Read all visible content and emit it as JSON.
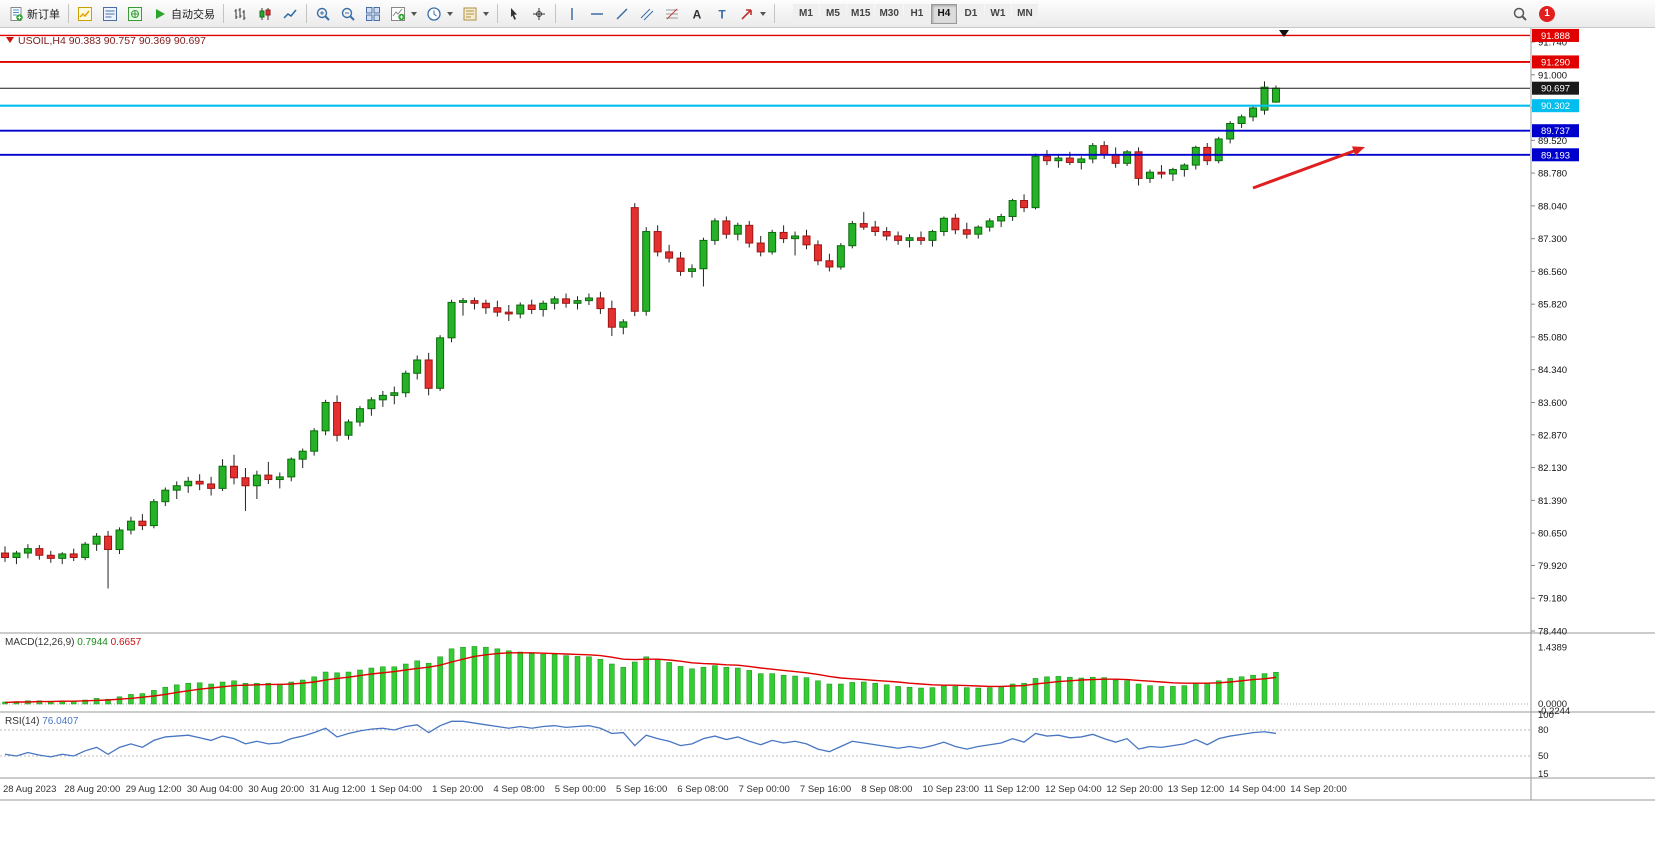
{
  "toolbar": {
    "new_order_label": "新订单",
    "auto_trading_label": "自动交易",
    "timeframes": [
      "M1",
      "M5",
      "M15",
      "M30",
      "H1",
      "H4",
      "D1",
      "W1",
      "MN"
    ],
    "active_timeframe": "H4",
    "notification_count": "1"
  },
  "chart": {
    "symbol_header": "USOIL,H4 90.383 90.757 90.369 90.697",
    "price_axis_ticks": [
      "91.740",
      "91.000",
      "90.260",
      "89.520",
      "88.780",
      "88.040",
      "87.300",
      "86.560",
      "85.820",
      "85.080",
      "84.340",
      "83.600",
      "82.870",
      "82.130",
      "81.390",
      "80.650",
      "79.920",
      "79.180",
      "78.440"
    ],
    "price_badges": [
      {
        "value": "91.888",
        "bg": "#E00000",
        "fg": "#FFFFFF"
      },
      {
        "value": "91.290",
        "bg": "#E00000",
        "fg": "#FFFFFF"
      },
      {
        "value": "90.697",
        "bg": "#1A1A1A",
        "fg": "#FFFFFF"
      },
      {
        "value": "90.302",
        "bg": "#00BFEF",
        "fg": "#FFFFFF"
      },
      {
        "value": "89.737",
        "bg": "#0000CD",
        "fg": "#FFFFFF"
      },
      {
        "value": "89.193",
        "bg": "#0000CD",
        "fg": "#FFFFFF"
      }
    ],
    "hlines": [
      {
        "price": 91.888,
        "color": "#E00000",
        "width": 1.3
      },
      {
        "price": 91.29,
        "color": "#E00000",
        "width": 1.8
      },
      {
        "price": 90.697,
        "color": "#1A1A1A",
        "width": 1
      },
      {
        "price": 90.302,
        "color": "#00BFEF",
        "width": 2.2
      },
      {
        "price": 89.737,
        "color": "#0000CD",
        "width": 1.8
      },
      {
        "price": 89.193,
        "color": "#0000CD",
        "width": 1.8
      }
    ],
    "time_labels": [
      "28 Aug 2023",
      "28 Aug 20:00",
      "29 Aug 12:00",
      "30 Aug 04:00",
      "30 Aug 20:00",
      "31 Aug 12:00",
      "1 Sep 04:00",
      "1 Sep 20:00",
      "4 Sep 08:00",
      "5 Sep 00:00",
      "5 Sep 16:00",
      "6 Sep 08:00",
      "7 Sep 00:00",
      "7 Sep 16:00",
      "8 Sep 08:00",
      "10 Sep 23:00",
      "11 Sep 12:00",
      "12 Sep 04:00",
      "12 Sep 20:00",
      "13 Sep 12:00",
      "14 Sep 04:00",
      "14 Sep 20:00"
    ],
    "colors": {
      "up": "#26B226",
      "up_border": "#0B6B0B",
      "down": "#E53030",
      "down_border": "#9E1414",
      "wick": "#222222",
      "macd_hist": "#33CC33",
      "macd_hist_border": "#189018",
      "macd_signal": "#E00000",
      "rsi_line": "#4876C2",
      "annotation_arrow": "#E02020",
      "header_text": "#7B1D1D"
    }
  },
  "chart_data": {
    "type": "candlestick",
    "symbol": "USOIL",
    "timeframe": "H4",
    "price_range": [
      78.44,
      91.74
    ],
    "ohlc_current": {
      "open": 90.383,
      "high": 90.757,
      "low": 90.369,
      "close": 90.697
    },
    "candles": [
      [
        80.2,
        80.35,
        80.0,
        80.1
      ],
      [
        80.1,
        80.25,
        79.95,
        80.2
      ],
      [
        80.2,
        80.4,
        80.08,
        80.3
      ],
      [
        80.3,
        80.38,
        80.05,
        80.15
      ],
      [
        80.15,
        80.25,
        79.98,
        80.08
      ],
      [
        80.08,
        80.22,
        79.95,
        80.18
      ],
      [
        80.18,
        80.3,
        80.02,
        80.1
      ],
      [
        80.1,
        80.45,
        80.04,
        80.4
      ],
      [
        80.4,
        80.65,
        80.25,
        80.58
      ],
      [
        80.58,
        80.7,
        79.4,
        80.28
      ],
      [
        80.28,
        80.78,
        80.18,
        80.72
      ],
      [
        80.72,
        81.02,
        80.62,
        80.92
      ],
      [
        80.92,
        81.08,
        80.72,
        80.82
      ],
      [
        80.82,
        81.42,
        80.76,
        81.36
      ],
      [
        81.36,
        81.68,
        81.26,
        81.62
      ],
      [
        81.62,
        81.82,
        81.42,
        81.72
      ],
      [
        81.72,
        81.92,
        81.56,
        81.82
      ],
      [
        81.82,
        81.98,
        81.62,
        81.76
      ],
      [
        81.76,
        81.92,
        81.5,
        81.66
      ],
      [
        81.66,
        82.32,
        81.6,
        82.16
      ],
      [
        82.16,
        82.42,
        81.75,
        81.9
      ],
      [
        81.9,
        82.12,
        81.15,
        81.72
      ],
      [
        81.72,
        82.06,
        81.42,
        81.96
      ],
      [
        81.96,
        82.26,
        81.76,
        81.86
      ],
      [
        81.86,
        82.02,
        81.66,
        81.92
      ],
      [
        81.92,
        82.36,
        81.82,
        82.32
      ],
      [
        82.32,
        82.56,
        82.12,
        82.5
      ],
      [
        82.5,
        83.02,
        82.4,
        82.96
      ],
      [
        82.96,
        83.66,
        82.86,
        83.6
      ],
      [
        83.6,
        83.76,
        82.72,
        82.86
      ],
      [
        82.86,
        83.22,
        82.76,
        83.16
      ],
      [
        83.16,
        83.52,
        83.06,
        83.46
      ],
      [
        83.46,
        83.72,
        83.3,
        83.66
      ],
      [
        83.66,
        83.86,
        83.5,
        83.76
      ],
      [
        83.76,
        83.96,
        83.56,
        83.82
      ],
      [
        83.82,
        84.32,
        83.72,
        84.26
      ],
      [
        84.26,
        84.66,
        84.12,
        84.56
      ],
      [
        84.56,
        84.72,
        83.76,
        83.92
      ],
      [
        83.92,
        85.12,
        83.86,
        85.06
      ],
      [
        85.06,
        85.92,
        84.96,
        85.86
      ],
      [
        85.86,
        85.96,
        85.56,
        85.9
      ],
      [
        85.9,
        85.97,
        85.7,
        85.84
      ],
      [
        85.84,
        85.92,
        85.6,
        85.74
      ],
      [
        85.74,
        85.9,
        85.54,
        85.64
      ],
      [
        85.64,
        85.8,
        85.44,
        85.6
      ],
      [
        85.6,
        85.86,
        85.5,
        85.8
      ],
      [
        85.8,
        85.92,
        85.6,
        85.7
      ],
      [
        85.7,
        85.9,
        85.54,
        85.84
      ],
      [
        85.84,
        86.0,
        85.7,
        85.94
      ],
      [
        85.94,
        86.06,
        85.74,
        85.84
      ],
      [
        85.84,
        86.0,
        85.7,
        85.9
      ],
      [
        85.9,
        86.06,
        85.8,
        85.96
      ],
      [
        85.96,
        86.1,
        85.6,
        85.72
      ],
      [
        85.72,
        85.9,
        85.1,
        85.3
      ],
      [
        85.3,
        85.48,
        85.14,
        85.42
      ],
      [
        88.0,
        88.1,
        85.55,
        85.66
      ],
      [
        85.66,
        87.56,
        85.56,
        87.46
      ],
      [
        87.46,
        87.6,
        86.9,
        87.0
      ],
      [
        87.0,
        87.16,
        86.76,
        86.86
      ],
      [
        86.86,
        87.0,
        86.46,
        86.56
      ],
      [
        86.56,
        86.72,
        86.42,
        86.62
      ],
      [
        86.62,
        87.32,
        86.22,
        87.26
      ],
      [
        87.26,
        87.76,
        87.16,
        87.7
      ],
      [
        87.7,
        87.8,
        87.3,
        87.4
      ],
      [
        87.4,
        87.66,
        87.26,
        87.6
      ],
      [
        87.6,
        87.7,
        87.1,
        87.2
      ],
      [
        87.2,
        87.36,
        86.9,
        87.0
      ],
      [
        87.0,
        87.5,
        86.94,
        87.44
      ],
      [
        87.44,
        87.6,
        87.2,
        87.3
      ],
      [
        87.3,
        87.46,
        86.92,
        87.36
      ],
      [
        87.36,
        87.5,
        87.06,
        87.16
      ],
      [
        87.16,
        87.26,
        86.7,
        86.8
      ],
      [
        86.8,
        86.96,
        86.56,
        86.66
      ],
      [
        86.66,
        87.2,
        86.6,
        87.14
      ],
      [
        87.14,
        87.7,
        87.08,
        87.64
      ],
      [
        87.64,
        87.9,
        87.5,
        87.56
      ],
      [
        87.56,
        87.7,
        87.36,
        87.46
      ],
      [
        87.46,
        87.56,
        87.26,
        87.36
      ],
      [
        87.36,
        87.46,
        87.16,
        87.26
      ],
      [
        87.26,
        87.4,
        87.1,
        87.32
      ],
      [
        87.32,
        87.46,
        87.16,
        87.26
      ],
      [
        87.26,
        87.5,
        87.12,
        87.46
      ],
      [
        87.46,
        87.8,
        87.36,
        87.76
      ],
      [
        87.76,
        87.86,
        87.4,
        87.5
      ],
      [
        87.5,
        87.66,
        87.3,
        87.4
      ],
      [
        87.4,
        87.6,
        87.3,
        87.56
      ],
      [
        87.56,
        87.76,
        87.46,
        87.7
      ],
      [
        87.7,
        87.86,
        87.56,
        87.8
      ],
      [
        87.8,
        88.2,
        87.7,
        88.16
      ],
      [
        88.16,
        88.3,
        87.9,
        88.0
      ],
      [
        88.0,
        89.22,
        87.96,
        89.16
      ],
      [
        89.16,
        89.3,
        88.96,
        89.06
      ],
      [
        89.06,
        89.2,
        88.9,
        89.12
      ],
      [
        89.12,
        89.26,
        88.96,
        89.02
      ],
      [
        89.02,
        89.16,
        88.86,
        89.1
      ],
      [
        89.1,
        89.46,
        89.0,
        89.4
      ],
      [
        89.4,
        89.5,
        89.1,
        89.2
      ],
      [
        89.2,
        89.36,
        88.9,
        89.0
      ],
      [
        89.0,
        89.3,
        88.94,
        89.26
      ],
      [
        89.26,
        89.36,
        88.5,
        88.66
      ],
      [
        88.66,
        88.86,
        88.56,
        88.8
      ],
      [
        88.8,
        88.96,
        88.66,
        88.76
      ],
      [
        88.76,
        88.9,
        88.6,
        88.86
      ],
      [
        88.86,
        89.0,
        88.7,
        88.96
      ],
      [
        88.96,
        89.4,
        88.86,
        89.36
      ],
      [
        89.36,
        89.46,
        88.96,
        89.06
      ],
      [
        89.06,
        89.6,
        89.0,
        89.55
      ],
      [
        89.55,
        89.95,
        89.45,
        89.9
      ],
      [
        89.9,
        90.1,
        89.8,
        90.05
      ],
      [
        90.05,
        90.3,
        89.95,
        90.25
      ],
      [
        90.2,
        90.85,
        90.1,
        90.72
      ],
      [
        90.383,
        90.757,
        90.369,
        90.697
      ]
    ],
    "macd": {
      "label": "MACD(12,26,9)",
      "value_main": "0.7944",
      "value_signal": "0.6657",
      "axis_ticks": [
        "1.4389",
        "0.0000",
        "-0.2244"
      ],
      "histogram": [
        0.05,
        0.06,
        0.08,
        0.08,
        0.07,
        0.08,
        0.08,
        0.1,
        0.14,
        0.12,
        0.18,
        0.24,
        0.26,
        0.34,
        0.42,
        0.48,
        0.52,
        0.53,
        0.5,
        0.55,
        0.58,
        0.52,
        0.52,
        0.52,
        0.5,
        0.55,
        0.6,
        0.68,
        0.8,
        0.78,
        0.8,
        0.85,
        0.9,
        0.93,
        0.93,
        1.0,
        1.08,
        1.02,
        1.18,
        1.38,
        1.42,
        1.4389,
        1.42,
        1.38,
        1.33,
        1.3,
        1.26,
        1.24,
        1.24,
        1.21,
        1.19,
        1.18,
        1.12,
        1.0,
        0.92,
        1.05,
        1.18,
        1.12,
        1.04,
        0.94,
        0.88,
        0.92,
        0.96,
        0.92,
        0.9,
        0.84,
        0.76,
        0.76,
        0.72,
        0.7,
        0.66,
        0.58,
        0.5,
        0.5,
        0.54,
        0.55,
        0.52,
        0.48,
        0.44,
        0.42,
        0.4,
        0.41,
        0.45,
        0.44,
        0.41,
        0.4,
        0.41,
        0.43,
        0.5,
        0.52,
        0.64,
        0.68,
        0.69,
        0.67,
        0.65,
        0.67,
        0.66,
        0.6,
        0.58,
        0.5,
        0.46,
        0.44,
        0.44,
        0.46,
        0.52,
        0.52,
        0.58,
        0.64,
        0.68,
        0.72,
        0.76,
        0.7944
      ],
      "signal": [
        0.04,
        0.05,
        0.05,
        0.06,
        0.06,
        0.07,
        0.07,
        0.08,
        0.09,
        0.1,
        0.12,
        0.14,
        0.17,
        0.2,
        0.24,
        0.29,
        0.33,
        0.37,
        0.4,
        0.43,
        0.46,
        0.47,
        0.48,
        0.49,
        0.49,
        0.5,
        0.52,
        0.55,
        0.6,
        0.64,
        0.67,
        0.71,
        0.75,
        0.78,
        0.81,
        0.85,
        0.89,
        0.92,
        0.97,
        1.05,
        1.12,
        1.19,
        1.23,
        1.26,
        1.28,
        1.28,
        1.28,
        1.27,
        1.26,
        1.25,
        1.24,
        1.23,
        1.21,
        1.17,
        1.12,
        1.11,
        1.12,
        1.12,
        1.1,
        1.07,
        1.03,
        1.01,
        1.0,
        0.98,
        0.97,
        0.94,
        0.9,
        0.87,
        0.84,
        0.81,
        0.78,
        0.74,
        0.69,
        0.65,
        0.63,
        0.61,
        0.59,
        0.57,
        0.55,
        0.52,
        0.5,
        0.48,
        0.47,
        0.47,
        0.46,
        0.45,
        0.44,
        0.44,
        0.45,
        0.46,
        0.5,
        0.53,
        0.56,
        0.58,
        0.6,
        0.61,
        0.62,
        0.62,
        0.61,
        0.59,
        0.57,
        0.55,
        0.53,
        0.52,
        0.52,
        0.52,
        0.53,
        0.55,
        0.58,
        0.61,
        0.63,
        0.6657
      ]
    },
    "rsi": {
      "label": "RSI(14)",
      "value": "76.0407",
      "axis_ticks": [
        "100",
        "80",
        "50",
        "15"
      ],
      "levels": [
        80,
        50
      ],
      "values": [
        52,
        50,
        54,
        51,
        49,
        52,
        50,
        56,
        60,
        52,
        60,
        64,
        60,
        68,
        72,
        73,
        74,
        71,
        68,
        73,
        70,
        64,
        67,
        64,
        65,
        70,
        73,
        77,
        82,
        72,
        76,
        79,
        81,
        82,
        80,
        84,
        86,
        77,
        85,
        90,
        90,
        88,
        86,
        84,
        82,
        84,
        82,
        84,
        85,
        83,
        84,
        85,
        82,
        76,
        77,
        62,
        74,
        70,
        67,
        62,
        64,
        70,
        73,
        69,
        72,
        67,
        63,
        68,
        65,
        67,
        64,
        58,
        55,
        61,
        67,
        65,
        63,
        61,
        59,
        61,
        59,
        62,
        66,
        61,
        58,
        61,
        63,
        65,
        70,
        66,
        76,
        73,
        74,
        71,
        72,
        75,
        70,
        66,
        70,
        58,
        61,
        60,
        62,
        64,
        69,
        63,
        70,
        73,
        75,
        77,
        78,
        76.0407
      ]
    }
  }
}
